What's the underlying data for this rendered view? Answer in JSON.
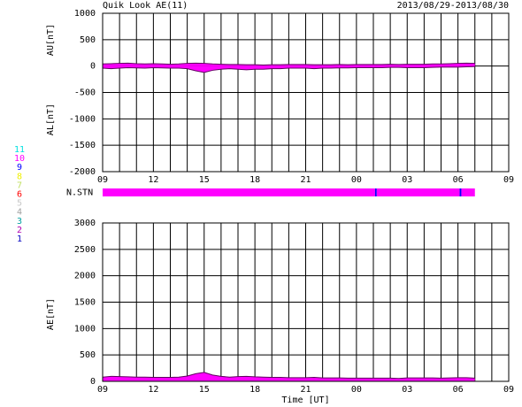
{
  "chart_data": [
    {
      "type": "area",
      "title": "Quik Look AE(11)",
      "subtitle": "2013/08/29-2013/08/30",
      "ylabels": [
        "AU[nT]",
        "AL[nT]"
      ],
      "x": [
        0,
        0.5,
        1,
        1.5,
        2,
        2.5,
        3,
        3.5,
        4,
        4.5,
        5,
        5.5,
        6,
        6.5,
        7,
        7.5,
        8,
        8.5,
        9,
        9.5,
        10,
        10.5,
        11,
        11.5,
        12,
        12.5,
        13,
        13.5,
        14,
        14.5,
        15,
        15.5,
        16,
        16.5,
        17,
        17.5,
        18,
        18.5,
        19,
        19.5,
        20,
        20.5,
        21,
        21.5,
        22
      ],
      "series": [
        {
          "name": "AU",
          "color": "#ff00ff",
          "values": [
            40,
            45,
            50,
            55,
            45,
            40,
            45,
            40,
            35,
            40,
            50,
            55,
            50,
            40,
            35,
            30,
            30,
            25,
            25,
            20,
            25,
            25,
            30,
            30,
            30,
            25,
            25,
            25,
            30,
            25,
            30,
            30,
            30,
            30,
            35,
            30,
            35,
            35,
            35,
            40,
            40,
            45,
            50,
            55,
            50
          ]
        },
        {
          "name": "AL",
          "color": "#ff00ff",
          "values": [
            -40,
            -50,
            -40,
            -30,
            -35,
            -40,
            -30,
            -35,
            -40,
            -40,
            -50,
            -90,
            -120,
            -80,
            -60,
            -50,
            -60,
            -70,
            -60,
            -60,
            -50,
            -50,
            -40,
            -40,
            -40,
            -50,
            -40,
            -40,
            -35,
            -35,
            -30,
            -30,
            -30,
            -30,
            -25,
            -25,
            -30,
            -30,
            -30,
            -25,
            -20,
            -20,
            -20,
            -15,
            -10
          ]
        }
      ],
      "xlim": [
        0,
        24
      ],
      "xticks": [
        {
          "value": 0,
          "label": "09"
        },
        {
          "value": 3,
          "label": "12"
        },
        {
          "value": 6,
          "label": "15"
        },
        {
          "value": 9,
          "label": "18"
        },
        {
          "value": 12,
          "label": "21"
        },
        {
          "value": 15,
          "label": "00"
        },
        {
          "value": 18,
          "label": "03"
        },
        {
          "value": 21,
          "label": "06"
        },
        {
          "value": 24,
          "label": "09"
        }
      ],
      "minor_xticks": [
        1,
        2,
        4,
        5,
        7,
        8,
        10,
        11,
        13,
        14,
        16,
        17,
        19,
        20,
        22,
        23
      ],
      "ylim": [
        -2000,
        1000
      ],
      "yticks": [
        1000,
        500,
        0,
        -500,
        -1000,
        -1500,
        -2000
      ],
      "grid": true
    },
    {
      "type": "strip",
      "label": "N.STN",
      "edges": [
        0,
        16.1,
        16.2,
        21.1,
        21.2,
        22
      ],
      "values": [
        10,
        9,
        10,
        9,
        10
      ],
      "xlim": [
        0,
        24
      ],
      "legend": [
        {
          "label": "11",
          "color": "#00e0e0"
        },
        {
          "label": "10",
          "color": "#ff00ff"
        },
        {
          "label": "9",
          "color": "#0000ff"
        },
        {
          "label": "8",
          "color": "#f0f000"
        },
        {
          "label": "7",
          "color": "#c0e060"
        },
        {
          "label": "6",
          "color": "#ff0000"
        },
        {
          "label": "5",
          "color": "#c8c8c8"
        },
        {
          "label": "4",
          "color": "#a0a0a0"
        },
        {
          "label": "3",
          "color": "#00a0a0"
        },
        {
          "label": "2",
          "color": "#b000b0"
        },
        {
          "label": "1",
          "color": "#0000c0"
        }
      ]
    },
    {
      "type": "area",
      "ylabels": [
        "AE[nT]"
      ],
      "xlabel": "Time [UT]",
      "x": [
        0,
        0.5,
        1,
        1.5,
        2,
        2.5,
        3,
        3.5,
        4,
        4.5,
        5,
        5.5,
        6,
        6.5,
        7,
        7.5,
        8,
        8.5,
        9,
        9.5,
        10,
        10.5,
        11,
        11.5,
        12,
        12.5,
        13,
        13.5,
        14,
        14.5,
        15,
        15.5,
        16,
        16.5,
        17,
        17.5,
        18,
        18.5,
        19,
        19.5,
        20,
        20.5,
        21,
        21.5,
        22
      ],
      "series": [
        {
          "name": "AE",
          "color": "#ff00ff",
          "values": [
            80,
            95,
            90,
            85,
            80,
            80,
            75,
            75,
            75,
            80,
            100,
            145,
            170,
            120,
            95,
            80,
            90,
            95,
            85,
            80,
            75,
            75,
            70,
            70,
            70,
            75,
            65,
            65,
            65,
            60,
            60,
            60,
            60,
            60,
            60,
            55,
            65,
            65,
            65,
            65,
            60,
            65,
            70,
            70,
            60
          ]
        }
      ],
      "xlim": [
        0,
        24
      ],
      "xticks": [
        {
          "value": 0,
          "label": "09"
        },
        {
          "value": 3,
          "label": "12"
        },
        {
          "value": 6,
          "label": "15"
        },
        {
          "value": 9,
          "label": "18"
        },
        {
          "value": 12,
          "label": "21"
        },
        {
          "value": 15,
          "label": "00"
        },
        {
          "value": 18,
          "label": "03"
        },
        {
          "value": 21,
          "label": "06"
        },
        {
          "value": 24,
          "label": "09"
        }
      ],
      "minor_xticks": [
        1,
        2,
        4,
        5,
        7,
        8,
        10,
        11,
        13,
        14,
        16,
        17,
        19,
        20,
        22,
        23
      ],
      "ylim": [
        0,
        3000
      ],
      "yticks": [
        3000,
        2500,
        2000,
        1500,
        1000,
        500,
        0
      ],
      "grid": true
    }
  ]
}
